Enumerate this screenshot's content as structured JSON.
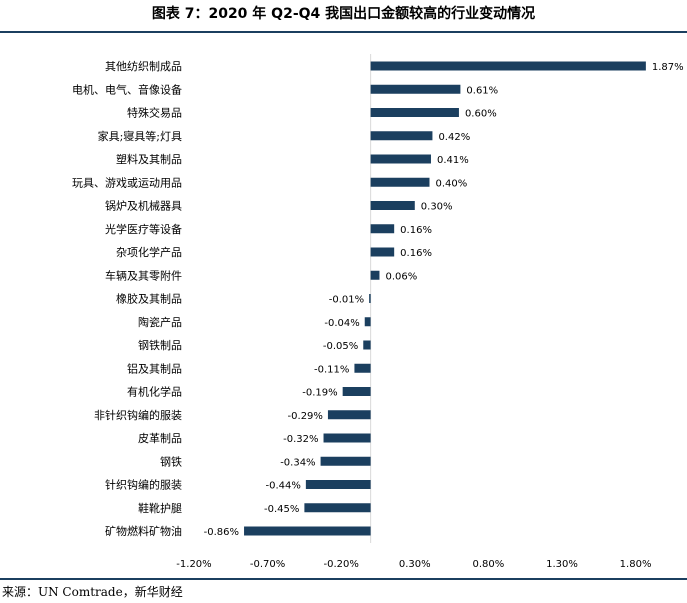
{
  "title": "图表 7：2020 年 Q2-Q4 我国出口金额较高的行业变动情况",
  "source": "来源：UN Comtrade，新华财经",
  "colors": {
    "bar": "#1b3f5f",
    "rule": "#1b3f5f",
    "axis": "#d9d9d9"
  },
  "chart_data": {
    "type": "bar",
    "orientation": "horizontal",
    "categories": [
      "其他纺织制成品",
      "电机、电气、音像设备",
      "特殊交易品",
      "家具;寝具等;灯具",
      "塑料及其制品",
      "玩具、游戏或运动用品",
      "锅炉及机械器具",
      "光学医疗等设备",
      "杂项化学产品",
      "车辆及其零附件",
      "橡胶及其制品",
      "陶瓷产品",
      "钢铁制品",
      "铝及其制品",
      "有机化学品",
      "非针织钩编的服装",
      "皮革制品",
      "钢铁",
      "针织钩编的服装",
      "鞋靴护腿",
      "矿物燃料矿物油"
    ],
    "values": [
      1.87,
      0.61,
      0.6,
      0.42,
      0.41,
      0.4,
      0.3,
      0.16,
      0.16,
      0.06,
      -0.01,
      -0.04,
      -0.05,
      -0.11,
      -0.19,
      -0.29,
      -0.32,
      -0.34,
      -0.44,
      -0.45,
      -0.86
    ],
    "data_labels": [
      "1.87%",
      "0.61%",
      "0.60%",
      "0.42%",
      "0.41%",
      "0.40%",
      "0.30%",
      "0.16%",
      "0.16%",
      "0.06%",
      "-0.01%",
      "-0.04%",
      "-0.05%",
      "-0.11%",
      "-0.19%",
      "-0.29%",
      "-0.32%",
      "-0.34%",
      "-0.44%",
      "-0.45%",
      "-0.86%"
    ],
    "xticks": [
      -1.2,
      -0.7,
      -0.2,
      0.3,
      0.8,
      1.3,
      1.8
    ],
    "xtick_labels": [
      "-1.20%",
      "-0.70%",
      "-0.20%",
      "0.30%",
      "0.80%",
      "1.30%",
      "1.80%"
    ],
    "xlim": [
      -1.2,
      2.0
    ],
    "grid": false,
    "legend": "none"
  }
}
